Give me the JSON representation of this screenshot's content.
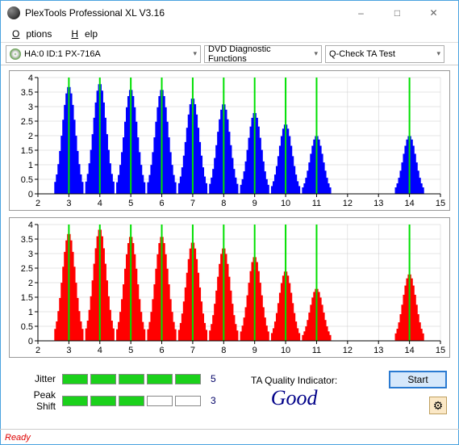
{
  "window": {
    "title": "PlexTools Professional XL V3.16"
  },
  "menu": {
    "options": "Options",
    "help": "Help"
  },
  "toolbar": {
    "drive": "HA:0 ID:1   PX-716A",
    "func": "DVD Diagnostic Functions",
    "test": "Q-Check TA Test"
  },
  "chart": {
    "ylim": [
      0,
      4
    ],
    "yticks": [
      0,
      0.5,
      1,
      1.5,
      2,
      2.5,
      3,
      3.5,
      4
    ],
    "xlim": [
      2,
      15
    ],
    "xticks": [
      2,
      3,
      4,
      5,
      6,
      7,
      8,
      9,
      10,
      11,
      12,
      13,
      14,
      15
    ],
    "marker_x": [
      3,
      4,
      5,
      6,
      7,
      8,
      9,
      10,
      11,
      14
    ],
    "top": {
      "color": "#0000ff",
      "peaks": [
        {
          "c": 3,
          "h": 3.7
        },
        {
          "c": 4,
          "h": 3.8
        },
        {
          "c": 5,
          "h": 3.6
        },
        {
          "c": 6,
          "h": 3.6
        },
        {
          "c": 7,
          "h": 3.3
        },
        {
          "c": 8,
          "h": 3.1
        },
        {
          "c": 9,
          "h": 2.8
        },
        {
          "c": 10,
          "h": 2.4
        },
        {
          "c": 11,
          "h": 2.0
        },
        {
          "c": 14,
          "h": 2.0
        }
      ]
    },
    "bottom": {
      "color": "#ff0000",
      "peaks": [
        {
          "c": 3,
          "h": 3.7
        },
        {
          "c": 4,
          "h": 3.85
        },
        {
          "c": 5,
          "h": 3.6
        },
        {
          "c": 6,
          "h": 3.6
        },
        {
          "c": 7,
          "h": 3.4
        },
        {
          "c": 8,
          "h": 3.2
        },
        {
          "c": 9,
          "h": 2.9
        },
        {
          "c": 10,
          "h": 2.4
        },
        {
          "c": 11,
          "h": 1.8
        },
        {
          "c": 14,
          "h": 2.3
        }
      ]
    },
    "grid_color": "#cccccc",
    "axis_color": "#000000",
    "marker_color": "#00e000"
  },
  "metrics": {
    "jitter": {
      "label": "Jitter",
      "value": "5",
      "segs": [
        1,
        1,
        1,
        1,
        1
      ]
    },
    "peakshift": {
      "label": "Peak Shift",
      "value": "3",
      "segs": [
        1,
        1,
        1,
        0,
        0
      ]
    }
  },
  "quality": {
    "label": "TA Quality Indicator:",
    "value": "Good"
  },
  "actions": {
    "start": "Start"
  },
  "status": "Ready"
}
